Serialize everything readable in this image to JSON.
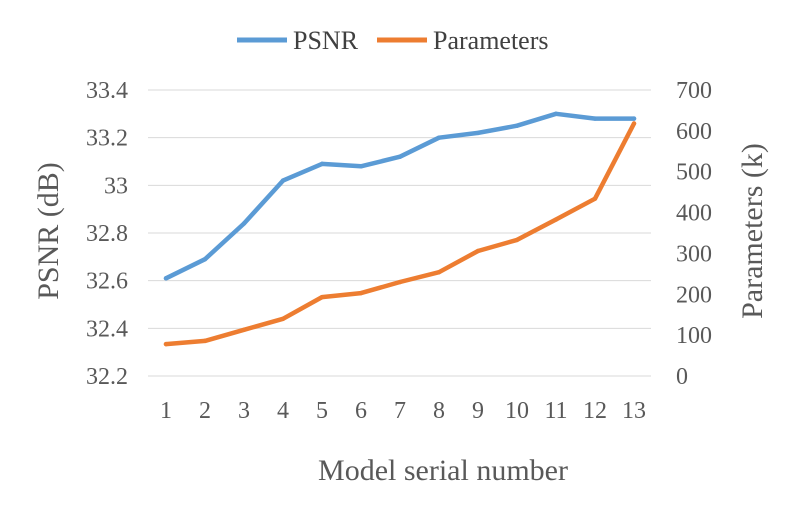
{
  "chart_data": {
    "type": "line",
    "categories": [
      "1",
      "2",
      "3",
      "4",
      "5",
      "6",
      "7",
      "8",
      "9",
      "10",
      "11",
      "12",
      "13"
    ],
    "xlabel": "Model serial number",
    "y_left": {
      "label": "PSNR (dB)",
      "lim": [
        32.2,
        33.4
      ],
      "ticks": [
        "32.2",
        "32.4",
        "32.6",
        "32.8",
        "33",
        "33.2",
        "33.4"
      ]
    },
    "y_right": {
      "label": "Parameters (k)",
      "lim": [
        0,
        700
      ],
      "ticks": [
        "0",
        "100",
        "200",
        "300",
        "400",
        "500",
        "600",
        "700"
      ]
    },
    "grid": "horizontal",
    "legend_position": "top",
    "series": [
      {
        "name": "PSNR",
        "axis": "left",
        "color": "#5B9BD5",
        "values": [
          32.61,
          32.69,
          32.84,
          33.02,
          33.09,
          33.08,
          33.12,
          33.2,
          33.22,
          33.25,
          33.3,
          33.28,
          33.28
        ]
      },
      {
        "name": "Parameters",
        "axis": "right",
        "color": "#ED7D31",
        "values": [
          78,
          86,
          113,
          140,
          193,
          203,
          230,
          254,
          306,
          333,
          383,
          434,
          618
        ]
      }
    ]
  }
}
